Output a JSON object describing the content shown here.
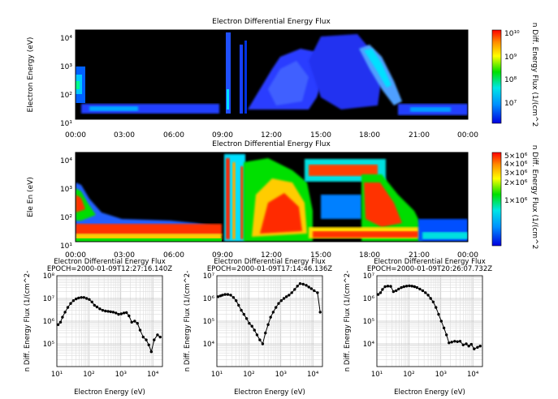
{
  "chart_data": [
    {
      "type": "heatmap",
      "title": "Electron Differential Energy Flux",
      "ylabel": "Electron Energy (eV)",
      "ylim": [
        10,
        20000
      ],
      "yscale": "log",
      "y_ticks": [
        "10¹",
        "10²",
        "10³",
        "10⁴"
      ],
      "x_ticks": [
        "00:00",
        "03:00",
        "06:00",
        "09:00",
        "12:00",
        "15:00",
        "18:00",
        "21:00",
        "00:00"
      ],
      "colorbar": {
        "label": "n Diff. Energy Flux (1/(cm^2",
        "scale": "log",
        "ticks": [
          "10¹⁰",
          "10⁹",
          "10⁸",
          "10⁷"
        ]
      }
    },
    {
      "type": "heatmap",
      "title": "Electron Differential Energy Flux",
      "ylabel": "Ele En (eV)",
      "ylim": [
        10,
        20000
      ],
      "yscale": "log",
      "y_ticks": [
        "10¹",
        "10²",
        "10³",
        "10⁴"
      ],
      "x_ticks": [
        "00:00",
        "03:00",
        "06:00",
        "09:00",
        "12:00",
        "15:00",
        "18:00",
        "21:00",
        "00:00"
      ],
      "colorbar": {
        "label": "n Diff. Energy Flux (1/(cm^2",
        "scale": "linear",
        "ticks": [
          "5×10⁶",
          "4×10⁶",
          "3×10⁶",
          "2×10⁶",
          "1×10⁶"
        ]
      }
    },
    {
      "type": "line",
      "title": "Electron Differential Energy Flux",
      "subtitle": "EPOCH=2000-01-09T12:27:16.140Z",
      "xlabel": "Electron Energy (eV)",
      "ylabel": "n Diff. Energy Flux (1/(cm^2-",
      "xscale": "log",
      "yscale": "log",
      "xlim": [
        10,
        20000
      ],
      "ylim": [
        10000,
        100000000
      ],
      "x_ticks": [
        "10¹",
        "10²",
        "10³",
        "10⁴"
      ],
      "y_ticks": [
        "10⁵",
        "10⁶",
        "10⁷",
        "10⁸"
      ],
      "x": [
        11,
        13,
        15,
        18,
        22,
        27,
        33,
        40,
        48,
        58,
        70,
        85,
        103,
        125,
        150,
        180,
        220,
        270,
        330,
        400,
        480,
        580,
        700,
        850,
        1030,
        1250,
        1500,
        1800,
        2200,
        2700,
        3300,
        4000,
        5000,
        6200,
        7500,
        9000,
        11000,
        14000,
        17000
      ],
      "y": [
        700000,
        900000,
        1500000,
        2500000,
        4000000,
        6000000,
        8000000,
        9500000,
        10500000,
        11000000,
        11000000,
        10000000,
        9000000,
        7000000,
        5000000,
        4200000,
        3500000,
        3000000,
        2800000,
        2700000,
        2600000,
        2500000,
        2300000,
        2000000,
        2100000,
        2300000,
        2400000,
        1700000,
        900000,
        1000000,
        800000,
        400000,
        200000,
        150000,
        90000,
        45000,
        150000,
        250000,
        200000
      ]
    },
    {
      "type": "line",
      "title": "Electron Differential Energy Flux",
      "subtitle": "EPOCH=2000-01-09T17:14:46.136Z",
      "xlabel": "Electron Energy (eV)",
      "ylabel": "n Diff. Energy Flux (1/(cm^2-",
      "xscale": "log",
      "yscale": "log",
      "xlim": [
        10,
        20000
      ],
      "ylim": [
        1000,
        10000000
      ],
      "x_ticks": [
        "10¹",
        "10²",
        "10³",
        "10⁴"
      ],
      "y_ticks": [
        "10⁴",
        "10⁵",
        "10⁶",
        "10⁷"
      ],
      "x": [
        11,
        13,
        15,
        18,
        22,
        27,
        33,
        40,
        48,
        58,
        70,
        85,
        103,
        125,
        150,
        180,
        220,
        270,
        330,
        400,
        480,
        580,
        700,
        850,
        1030,
        1250,
        1500,
        1800,
        2200,
        2700,
        3300,
        4000,
        5000,
        6200,
        7500,
        9000,
        11000,
        14000,
        17000
      ],
      "y": [
        1200000,
        1300000,
        1400000,
        1500000,
        1500000,
        1400000,
        1100000,
        800000,
        500000,
        300000,
        200000,
        130000,
        80000,
        60000,
        40000,
        25000,
        15000,
        10000,
        30000,
        70000,
        150000,
        250000,
        400000,
        600000,
        800000,
        1000000,
        1200000,
        1400000,
        1800000,
        2500000,
        3500000,
        4500000,
        4200000,
        3800000,
        3200000,
        2700000,
        2200000,
        1800000,
        250000
      ]
    },
    {
      "type": "line",
      "title": "Electron Differential Energy Flux",
      "subtitle": "EPOCH=2000-01-09T20:26:07.732Z",
      "xlabel": "Electron Energy (eV)",
      "ylabel": "n Diff. Energy Flux (1/(cm^2-",
      "xscale": "log",
      "yscale": "log",
      "xlim": [
        10,
        20000
      ],
      "ylim": [
        1000,
        10000000
      ],
      "x_ticks": [
        "10¹",
        "10²",
        "10³",
        "10⁴"
      ],
      "y_ticks": [
        "10⁴",
        "10⁵",
        "10⁶",
        "10⁷"
      ],
      "x": [
        11,
        13,
        15,
        18,
        22,
        27,
        33,
        40,
        48,
        58,
        70,
        85,
        103,
        125,
        150,
        180,
        220,
        270,
        330,
        400,
        480,
        580,
        700,
        850,
        1030,
        1250,
        1500,
        1800,
        2200,
        2700,
        3300,
        4000,
        5000,
        6200,
        7500,
        9000,
        11000,
        14000,
        17000
      ],
      "y": [
        1500000,
        1800000,
        2500000,
        3300000,
        3500000,
        3400000,
        2000000,
        2200000,
        2600000,
        3000000,
        3300000,
        3500000,
        3600000,
        3500000,
        3300000,
        3000000,
        2600000,
        2200000,
        1800000,
        1400000,
        1000000,
        700000,
        400000,
        200000,
        100000,
        50000,
        25000,
        11000,
        12000,
        13000,
        12500,
        13000,
        9000,
        10000,
        8000,
        9500,
        6000,
        7000,
        8000
      ]
    }
  ]
}
